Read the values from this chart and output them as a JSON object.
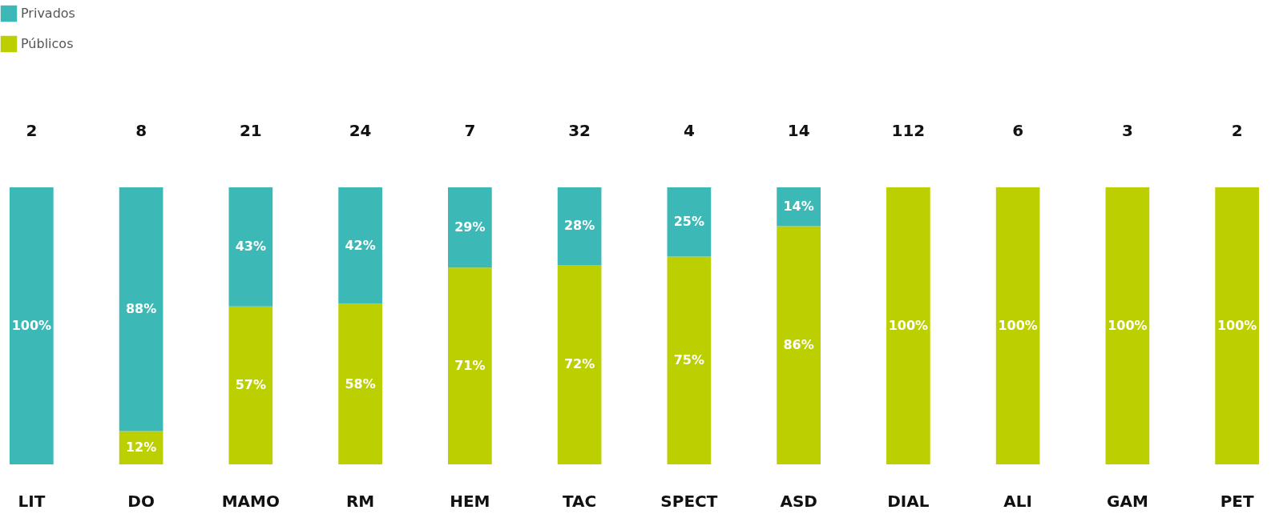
{
  "chart_data": {
    "type": "bar",
    "stacked": true,
    "legend": "top left",
    "categories": [
      "LIT",
      "DO",
      "MAMO",
      "RM",
      "HEM",
      "TAC",
      "SPECT",
      "ASD",
      "DIAL",
      "ALI",
      "GAM",
      "PET"
    ],
    "series": [
      {
        "name": "Públicos",
        "color": "#bccf00",
        "values": [
          0,
          12,
          57,
          58,
          71,
          72,
          75,
          86,
          100,
          100,
          100,
          100
        ],
        "value_labels": [
          null,
          "12%",
          "57%",
          "58%",
          "71%",
          "72%",
          "75%",
          "86%",
          "100%",
          "100%",
          "100%",
          "100%"
        ]
      },
      {
        "name": "Privados",
        "color": "#3cb8b6",
        "values": [
          100,
          88,
          43,
          42,
          29,
          28,
          25,
          14,
          0,
          0,
          0,
          0
        ],
        "value_labels": [
          "100%",
          "88%",
          "43%",
          "42%",
          "29%",
          "28%",
          "25%",
          "14%",
          null,
          null,
          null,
          null
        ]
      }
    ],
    "annotations": [
      "2",
      "8",
      "21",
      "24",
      "7",
      "32",
      "4",
      "14",
      "112",
      "6",
      "3",
      "2"
    ]
  }
}
